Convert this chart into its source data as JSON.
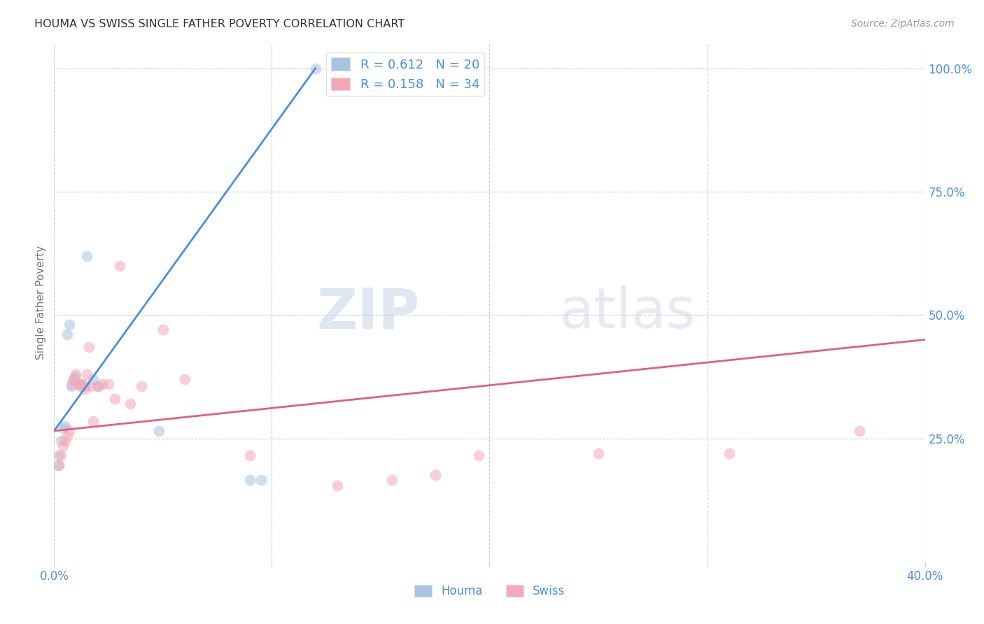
{
  "title": "HOUMA VS SWISS SINGLE FATHER POVERTY CORRELATION CHART",
  "source": "Source: ZipAtlas.com",
  "ylabel": "Single Father Poverty",
  "xlim": [
    0.0,
    0.4
  ],
  "ylim": [
    0.0,
    1.05
  ],
  "xticks": [
    0.0,
    0.1,
    0.2,
    0.3,
    0.4
  ],
  "xticklabels": [
    "0.0%",
    "",
    "",
    "",
    "40.0%"
  ],
  "yticks_right": [
    0.25,
    0.5,
    0.75,
    1.0
  ],
  "ytick_labels_right": [
    "25.0%",
    "50.0%",
    "75.0%",
    "100.0%"
  ],
  "grid_color": "#cccccc",
  "background_color": "#ffffff",
  "houma_color": "#a8c4e0",
  "swiss_color": "#f4a8b8",
  "houma_line_color": "#4a90d9",
  "swiss_line_color": "#e06080",
  "houma_R": 0.612,
  "houma_N": 20,
  "swiss_R": 0.158,
  "swiss_N": 34,
  "watermark_zip": "ZIP",
  "watermark_atlas": "atlas",
  "tick_label_color": "#4a90d9",
  "legend_fontsize": 13,
  "dot_size": 130,
  "dot_alpha": 0.55,
  "bottom_label_houma": "Houma",
  "bottom_label_swiss": "Swiss",
  "houma_x": [
    0.002,
    0.002,
    0.003,
    0.004,
    0.005,
    0.006,
    0.007,
    0.008,
    0.009,
    0.01,
    0.011,
    0.012,
    0.014,
    0.015,
    0.018,
    0.02,
    0.048,
    0.09,
    0.095,
    0.12
  ],
  "houma_y": [
    0.195,
    0.215,
    0.245,
    0.27,
    0.275,
    0.46,
    0.48,
    0.355,
    0.37,
    0.375,
    0.36,
    0.36,
    0.355,
    0.62,
    0.37,
    0.355,
    0.265,
    0.165,
    0.165,
    1.0
  ],
  "swiss_x": [
    0.002,
    0.003,
    0.004,
    0.005,
    0.006,
    0.007,
    0.008,
    0.009,
    0.01,
    0.011,
    0.012,
    0.013,
    0.014,
    0.015,
    0.016,
    0.017,
    0.018,
    0.02,
    0.022,
    0.025,
    0.028,
    0.03,
    0.035,
    0.04,
    0.05,
    0.06,
    0.09,
    0.13,
    0.155,
    0.175,
    0.195,
    0.25,
    0.31,
    0.37
  ],
  "swiss_y": [
    0.195,
    0.215,
    0.235,
    0.245,
    0.255,
    0.265,
    0.36,
    0.37,
    0.38,
    0.36,
    0.355,
    0.36,
    0.35,
    0.38,
    0.435,
    0.355,
    0.285,
    0.355,
    0.36,
    0.36,
    0.33,
    0.6,
    0.32,
    0.355,
    0.47,
    0.37,
    0.215,
    0.155,
    0.165,
    0.175,
    0.215,
    0.22,
    0.22,
    0.265
  ],
  "houma_trend_x": [
    0.0,
    0.12
  ],
  "houma_trend_y": [
    0.265,
    1.0
  ],
  "swiss_trend_x": [
    0.0,
    0.4
  ],
  "swiss_trend_y": [
    0.265,
    0.45
  ]
}
